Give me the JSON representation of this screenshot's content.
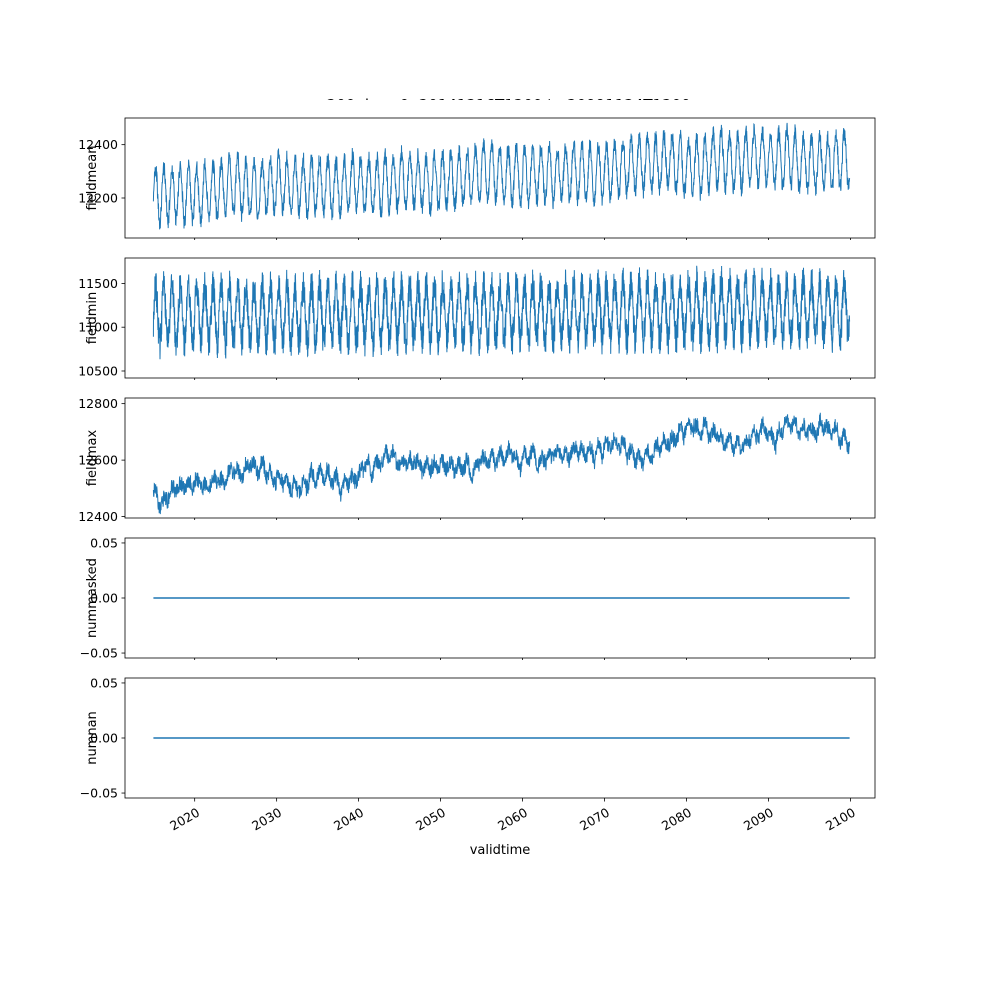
{
  "figure": {
    "title": "zg200, lev=0, 20141216T1200 to 20991124T1200",
    "xlabel": "validtime",
    "line_color": "#1f77b4",
    "background": "#ffffff",
    "variable": "zg200",
    "level": "lev=0",
    "time_range_start": "20141216T1200",
    "time_range_end": "20991124T1200"
  },
  "x_axis": {
    "lim": [
      2011.5,
      2103
    ],
    "ticks": [
      2020,
      2030,
      2040,
      2050,
      2060,
      2070,
      2080,
      2090,
      2100
    ],
    "tick_labels": [
      "2020",
      "2030",
      "2040",
      "2050",
      "2060",
      "2070",
      "2080",
      "2090",
      "2100"
    ],
    "rotation": 30
  },
  "chart_data": [
    {
      "type": "line",
      "ylabel": "fieldmean",
      "ylim": [
        12050,
        12500
      ],
      "yticks": [
        12200,
        12400
      ],
      "ytick_labels": [
        "12200",
        "12400"
      ],
      "observed_range": [
        12060,
        12490
      ],
      "description": "Annual oscillation around ~12220 rising to ~12360 by 2100",
      "series": {
        "name": "fieldmean",
        "type": "seasonal-noise",
        "n": 3000,
        "x_start": 2014.96,
        "x_end": 2099.9,
        "base_start": 12215,
        "base_end": 12355,
        "seasonal_amp": 100,
        "seasonal_period": 1,
        "noise": 32,
        "walk_step": 6,
        "walk_damp": 0.99,
        "seed": 42,
        "width": 1.0
      }
    },
    {
      "type": "line",
      "ylabel": "fieldmin",
      "ylim": [
        10420,
        11790
      ],
      "yticks": [
        10500,
        11000,
        11500
      ],
      "ytick_labels": [
        "10500",
        "11000",
        "11500"
      ],
      "observed_range": [
        10520,
        11740
      ],
      "description": "Dense high-amplitude oscillation between ~10600 and ~11700, roughly stationary",
      "series": {
        "name": "fieldmin",
        "type": "seasonal-noise",
        "n": 4000,
        "x_start": 2014.96,
        "x_end": 2099.9,
        "base_start": 11140,
        "base_end": 11210,
        "seasonal_amp": 320,
        "seasonal_period": 1,
        "noise": 190,
        "walk_step": 4,
        "walk_damp": 0.98,
        "seed": 7,
        "width": 1.0
      }
    },
    {
      "type": "line",
      "ylabel": "fieldmax",
      "ylim": [
        12395,
        12820
      ],
      "yticks": [
        12400,
        12600,
        12800
      ],
      "ytick_labels": [
        "12400",
        "12600",
        "12800"
      ],
      "observed_range": [
        12410,
        12800
      ],
      "description": "Noisy slowly-varying line trending up from ~12510 to ~12700",
      "series": {
        "name": "fieldmax",
        "type": "seasonal-noise",
        "n": 3000,
        "x_start": 2014.96,
        "x_end": 2099.9,
        "base_start": 12505,
        "base_end": 12690,
        "seasonal_amp": 18,
        "seasonal_period": 1,
        "noise": 26,
        "walk_step": 14,
        "walk_damp": 0.99,
        "seed": 13,
        "width": 1.0
      }
    },
    {
      "type": "line",
      "ylabel": "nummasked",
      "ylim": [
        -0.0545,
        0.0545
      ],
      "yticks": [
        0.05,
        0,
        -0.05
      ],
      "ytick_labels": [
        "0.05",
        "0.00",
        "−0.05"
      ],
      "observed_range": [
        0,
        0
      ],
      "description": "Constant zero line",
      "series": {
        "name": "nummasked",
        "type": "constant",
        "x_start": 2014.96,
        "x_end": 2099.9,
        "value": 0,
        "width": 1.5
      }
    },
    {
      "type": "line",
      "ylabel": "numnan",
      "ylim": [
        -0.0545,
        0.0545
      ],
      "yticks": [
        0.05,
        0,
        -0.05
      ],
      "ytick_labels": [
        "0.05",
        "0.00",
        "−0.05"
      ],
      "observed_range": [
        0,
        0
      ],
      "description": "Constant zero line",
      "series": {
        "name": "numnan",
        "type": "constant",
        "x_start": 2014.96,
        "x_end": 2099.9,
        "value": 0,
        "width": 1.5
      }
    }
  ]
}
